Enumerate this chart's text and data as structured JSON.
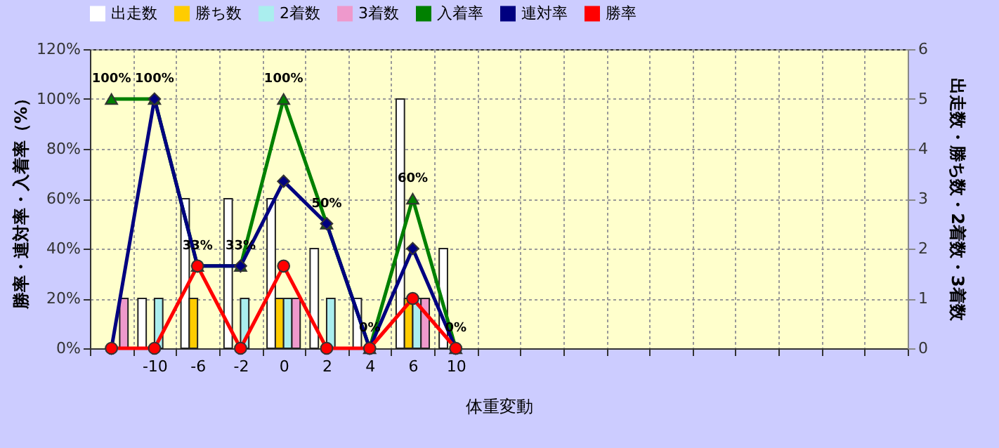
{
  "chart_data": {
    "type": "bar",
    "xlabel": "体重変動",
    "ylabel": "勝率・連対率・入着率（%）",
    "y2label": "出走数・勝ち数・2着数・3着数",
    "categories": [
      null,
      "-10",
      "-6",
      "-2",
      "0",
      "2",
      "4",
      "6",
      "10",
      null,
      null,
      null,
      null,
      null,
      null,
      null,
      null,
      null,
      null
    ],
    "series": [
      {
        "name": "出走数",
        "type": "bar",
        "axis": "y2",
        "color": "#ffffff",
        "values": [
          0,
          1,
          3,
          3,
          3,
          2,
          1,
          5,
          2,
          null,
          null,
          null,
          null,
          null,
          null,
          null,
          null,
          null,
          null
        ]
      },
      {
        "name": "勝ち数",
        "type": "bar",
        "axis": "y2",
        "color": "#ffcc00",
        "values": [
          0,
          0,
          1,
          0,
          1,
          0,
          0,
          1,
          0,
          null,
          null,
          null,
          null,
          null,
          null,
          null,
          null,
          null,
          null
        ]
      },
      {
        "name": "2着数",
        "type": "bar",
        "axis": "y2",
        "color": "#aaeeee",
        "values": [
          0,
          1,
          0,
          1,
          1,
          1,
          0,
          1,
          0,
          null,
          null,
          null,
          null,
          null,
          null,
          null,
          null,
          null,
          null
        ]
      },
      {
        "name": "3着数",
        "type": "bar",
        "axis": "y2",
        "color": "#ee99cc",
        "values": [
          1,
          0,
          0,
          0,
          1,
          0,
          0,
          1,
          0,
          null,
          null,
          null,
          null,
          null,
          null,
          null,
          null,
          null,
          null
        ]
      },
      {
        "name": "入着率",
        "type": "line",
        "color": "#008000",
        "marker": "triangle",
        "values": [
          100,
          100,
          33,
          33,
          100,
          50,
          0,
          60,
          0,
          null,
          null,
          null,
          null,
          null,
          null,
          null,
          null,
          null,
          null
        ],
        "value_labels": [
          "100%",
          "100%",
          "33%",
          "33%",
          "100%",
          "50%",
          "0%",
          "60%",
          "0%",
          null,
          null,
          null,
          null,
          null,
          null,
          null,
          null,
          null,
          null
        ]
      },
      {
        "name": "連対率",
        "type": "line",
        "color": "#000080",
        "marker": "diamond",
        "values": [
          0,
          100,
          33,
          33,
          67,
          50,
          0,
          40,
          0,
          null,
          null,
          null,
          null,
          null,
          null,
          null,
          null,
          null,
          null
        ]
      },
      {
        "name": "勝率",
        "type": "line",
        "color": "#ff0000",
        "marker": "circle",
        "values": [
          0,
          0,
          33,
          0,
          33,
          0,
          0,
          20,
          0,
          null,
          null,
          null,
          null,
          null,
          null,
          null,
          null,
          null,
          null
        ]
      }
    ],
    "ylim": [
      0,
      120
    ],
    "yticks": [
      {
        "value": 0,
        "label": "0%"
      },
      {
        "value": 20,
        "label": "20%"
      },
      {
        "value": 40,
        "label": "40%"
      },
      {
        "value": 60,
        "label": "60%"
      },
      {
        "value": 80,
        "label": "80%"
      },
      {
        "value": 100,
        "label": "100%"
      },
      {
        "value": 120,
        "label": "120%"
      }
    ],
    "y2lim": [
      0,
      6
    ],
    "y2ticks": [
      0,
      1,
      2,
      3,
      4,
      5,
      6
    ],
    "grid": true,
    "legend": "top",
    "line_style": "solid"
  }
}
